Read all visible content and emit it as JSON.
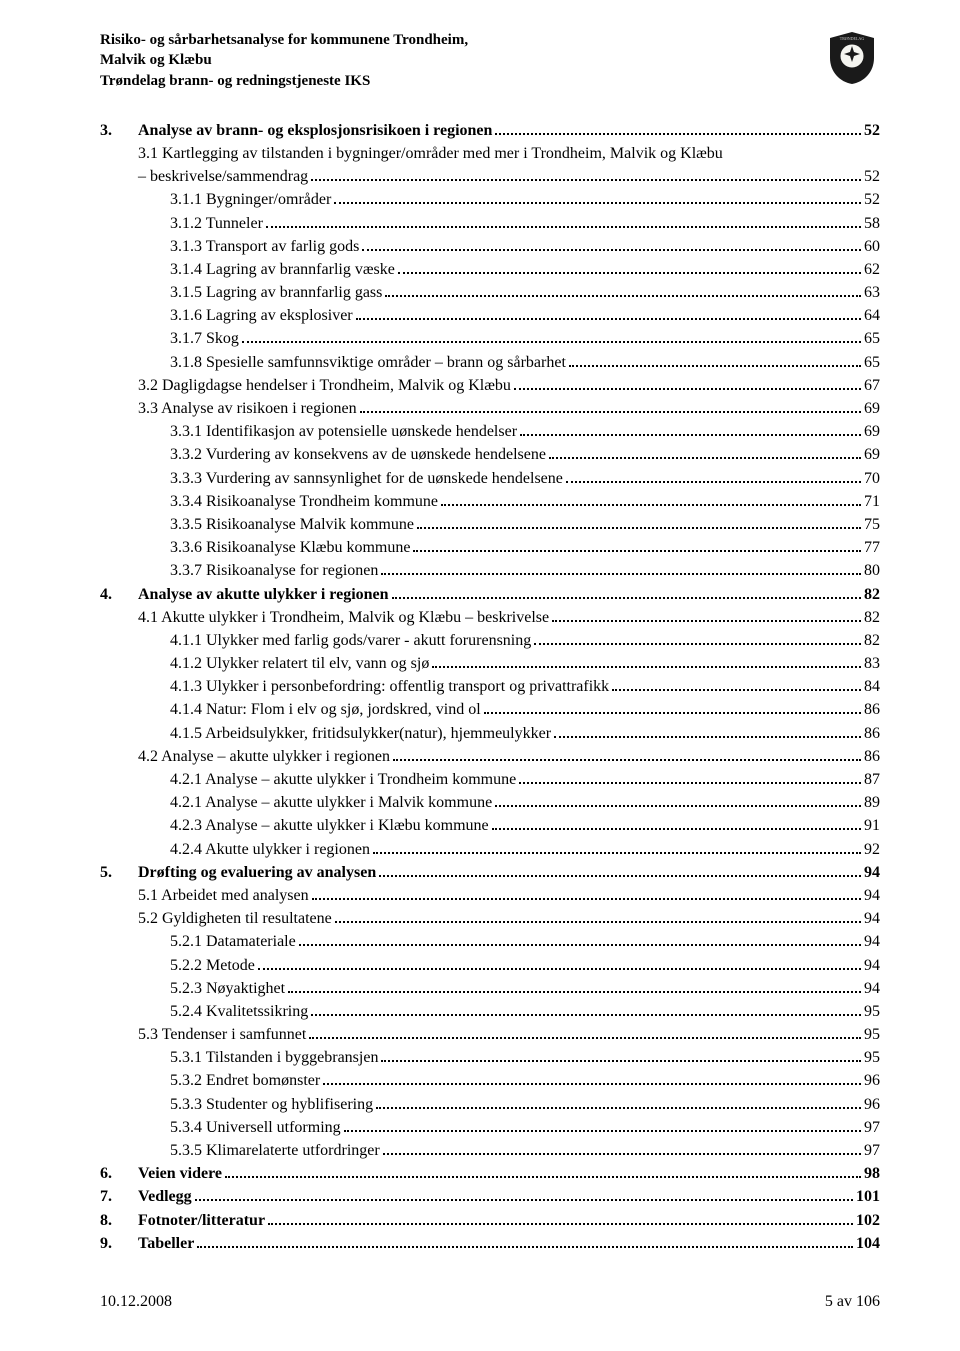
{
  "header": {
    "line1": "Risiko- og sårbarhetsanalyse for kommunene Trondheim,",
    "line2": "Malvik og Klæbu",
    "line3": "Trøndelag brann- og redningstjeneste IKS"
  },
  "toc": [
    {
      "level": 0,
      "num": "3.",
      "title": "Analyse av brann- og eksplosjonsrisikoen i regionen",
      "page": "52",
      "bold": true
    },
    {
      "level": 1,
      "num": "3.1",
      "title": "Kartlegging av tilstanden i bygninger/områder med mer i Trondheim, Malvik og Klæbu – beskrivelse/sammendrag",
      "page": "52",
      "wrap": true
    },
    {
      "level": 2,
      "num": "3.1.1",
      "title": "Bygninger/områder",
      "page": "52"
    },
    {
      "level": 2,
      "num": "3.1.2",
      "title": "Tunneler",
      "page": "58"
    },
    {
      "level": 2,
      "num": "3.1.3",
      "title": "Transport av farlig gods",
      "page": "60"
    },
    {
      "level": 2,
      "num": "3.1.4",
      "title": "Lagring av brannfarlig væske",
      "page": "62"
    },
    {
      "level": 2,
      "num": "3.1.5",
      "title": "Lagring av brannfarlig gass",
      "page": "63"
    },
    {
      "level": 2,
      "num": "3.1.6",
      "title": "Lagring av eksplosiver",
      "page": "64"
    },
    {
      "level": 2,
      "num": "3.1.7",
      "title": "Skog",
      "page": "65"
    },
    {
      "level": 2,
      "num": "3.1.8",
      "title": "Spesielle samfunnsviktige områder – brann og sårbarhet",
      "page": "65"
    },
    {
      "level": 1,
      "num": "3.2",
      "title": "Dagligdagse hendelser i Trondheim, Malvik og Klæbu",
      "page": "67"
    },
    {
      "level": 1,
      "num": "3.3",
      "title": "Analyse av risikoen i regionen",
      "page": "69"
    },
    {
      "level": 2,
      "num": "3.3.1",
      "title": "Identifikasjon av potensielle uønskede hendelser",
      "page": "69"
    },
    {
      "level": 2,
      "num": "3.3.2",
      "title": "Vurdering av konsekvens av de uønskede hendelsene",
      "page": "69"
    },
    {
      "level": 2,
      "num": "3.3.3",
      "title": "Vurdering av sannsynlighet for de uønskede hendelsene",
      "page": "70"
    },
    {
      "level": 2,
      "num": "3.3.4",
      "title": "Risikoanalyse Trondheim kommune",
      "page": "71"
    },
    {
      "level": 2,
      "num": "3.3.5",
      "title": "Risikoanalyse Malvik kommune",
      "page": "75"
    },
    {
      "level": 2,
      "num": "3.3.6",
      "title": "Risikoanalyse Klæbu kommune",
      "page": "77"
    },
    {
      "level": 2,
      "num": "3.3.7",
      "title": "Risikoanalyse for regionen",
      "page": "80"
    },
    {
      "level": 0,
      "num": "4.",
      "title": "Analyse av akutte ulykker i regionen",
      "page": "82",
      "bold": true
    },
    {
      "level": 1,
      "num": "4.1",
      "title": "Akutte ulykker i Trondheim, Malvik og Klæbu – beskrivelse",
      "page": "82"
    },
    {
      "level": 2,
      "num": "4.1.1",
      "title": "Ulykker med farlig gods/varer - akutt forurensning",
      "page": "82"
    },
    {
      "level": 2,
      "num": "4.1.2",
      "title": "Ulykker relatert til elv, vann og sjø",
      "page": "83"
    },
    {
      "level": 2,
      "num": "4.1.3",
      "title": "Ulykker i personbefordring: offentlig transport og privattrafikk",
      "page": "84"
    },
    {
      "level": 2,
      "num": "4.1.4",
      "title": "Natur: Flom i elv og sjø, jordskred, vind ol",
      "page": "86"
    },
    {
      "level": 2,
      "num": "4.1.5",
      "title": "Arbeidsulykker, fritidsulykker(natur), hjemmeulykker",
      "page": "86"
    },
    {
      "level": 1,
      "num": "4.2",
      "title": "Analyse – akutte ulykker i regionen",
      "page": "86"
    },
    {
      "level": 2,
      "num": "4.2.1",
      "title": "Analyse – akutte ulykker i Trondheim kommune",
      "page": "87"
    },
    {
      "level": 2,
      "num": "4.2.1",
      "title": "Analyse – akutte ulykker i Malvik kommune",
      "page": "89"
    },
    {
      "level": 2,
      "num": "4.2.3",
      "title": "Analyse – akutte ulykker i Klæbu kommune",
      "page": "91"
    },
    {
      "level": 2,
      "num": "4.2.4",
      "title": "Akutte ulykker i regionen",
      "page": "92"
    },
    {
      "level": 0,
      "num": "5.",
      "title": "Drøfting og evaluering av analysen",
      "page": "94",
      "bold": true
    },
    {
      "level": 1,
      "num": "5.1",
      "title": "Arbeidet med analysen",
      "page": "94"
    },
    {
      "level": 1,
      "num": "5.2",
      "title": "Gyldigheten til resultatene",
      "page": "94"
    },
    {
      "level": 2,
      "num": "5.2.1",
      "title": "Datamateriale",
      "page": "94"
    },
    {
      "level": 2,
      "num": "5.2.2",
      "title": "Metode",
      "page": "94"
    },
    {
      "level": 2,
      "num": "5.2.3",
      "title": "Nøyaktighet",
      "page": "94"
    },
    {
      "level": 2,
      "num": "5.2.4",
      "title": "Kvalitetssikring",
      "page": "95"
    },
    {
      "level": 1,
      "num": "5.3",
      "title": "Tendenser i samfunnet",
      "page": "95"
    },
    {
      "level": 2,
      "num": "5.3.1",
      "title": "Tilstanden i byggebransjen",
      "page": "95"
    },
    {
      "level": 2,
      "num": "5.3.2",
      "title": "Endret bomønster",
      "page": "96"
    },
    {
      "level": 2,
      "num": "5.3.3",
      "title": "Studenter og hyblifisering",
      "page": "96"
    },
    {
      "level": 2,
      "num": "5.3.4",
      "title": "Universell utforming",
      "page": "97"
    },
    {
      "level": 2,
      "num": "5.3.5",
      "title": "Klimarelaterte utfordringer",
      "page": "97"
    },
    {
      "level": 0,
      "num": "6.",
      "title": "Veien videre",
      "page": "98",
      "bold": true
    },
    {
      "level": 0,
      "num": "7.",
      "title": "Vedlegg",
      "page": "101",
      "bold": true
    },
    {
      "level": 0,
      "num": "8.",
      "title": "Fotnoter/litteratur",
      "page": "102",
      "bold": true
    },
    {
      "level": 0,
      "num": "9.",
      "title": "Tabeller",
      "page": "104",
      "bold": true
    }
  ],
  "footer": {
    "date": "10.12.2008",
    "page": "5 av 106"
  }
}
